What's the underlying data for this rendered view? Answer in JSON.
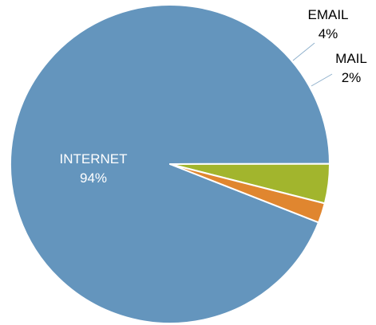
{
  "chart_data": {
    "type": "pie",
    "slices": [
      {
        "label": "INTERNET",
        "value": 94,
        "value_label": "94%",
        "color": "#6495bd",
        "label_color": "#ffffff"
      },
      {
        "label": "EMAIL",
        "value": 4,
        "value_label": "4%",
        "color": "#a2b52d",
        "label_color": "#000000"
      },
      {
        "label": "MAIL",
        "value": 2,
        "value_label": "2%",
        "color": "#e0862f",
        "label_color": "#000000"
      }
    ],
    "legend": "none",
    "slice_border_color": "#ffffff",
    "leader_line_color": "#8fb0cc"
  }
}
